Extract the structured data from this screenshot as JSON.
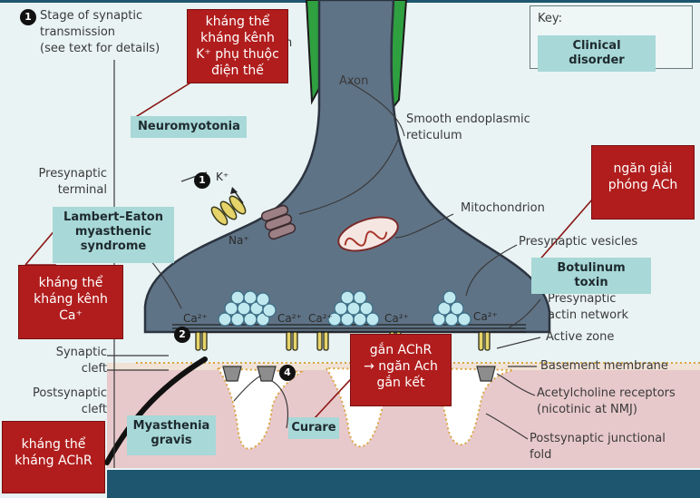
{
  "key": {
    "title": "Key:",
    "sample": "Clinical disorder"
  },
  "legend_note": {
    "number": "1",
    "text_line1": "Stage of synaptic",
    "text_line2": "transmission",
    "text_line3": "(see text for details)"
  },
  "step_numbers": {
    "k_step": "1",
    "ca_step": "2",
    "ach_step": "4"
  },
  "ions": {
    "k": "K⁺",
    "na": "Na⁺",
    "ca": "Ca²⁺"
  },
  "anatomy": {
    "axon": "Axon",
    "myelin_fragment": "n",
    "ser_line1": "Smooth endoplasmic",
    "ser_line2": "reticulum",
    "presynaptic_terminal_line1": "Presynaptic",
    "presynaptic_terminal_line2": "terminal",
    "mitochondrion": "Mitochondrion",
    "vesicles": "Presynaptic vesicles",
    "actin_line1": "Presynaptic",
    "actin_line2": "actin network",
    "active_zone": "Active zone",
    "synaptic_cleft_line1": "Synaptic",
    "synaptic_cleft_line2": "cleft",
    "basement_membrane": "Basement membrane",
    "postsynaptic_cleft_line1": "Postsynaptic",
    "postsynaptic_cleft_line2": "cleft",
    "achr_line1": "Acetylcholine receptors",
    "achr_line2": "(nicotinic at NMJ)",
    "fold_line1": "Postsynaptic junctional",
    "fold_line2": "fold"
  },
  "disorders": {
    "neuromyotonia": "Neuromyotonia",
    "lambert_line1": "Lambert–Eaton",
    "lambert_line2": "myasthenic",
    "lambert_line3": "syndrome",
    "botulinum": "Botulinum toxin",
    "curare": "Curare",
    "mg_line1": "Myasthenia",
    "mg_line2": "gravis"
  },
  "annotations": {
    "vgkc_line1": "kháng thể",
    "vgkc_line2": "kháng kênh",
    "vgkc_line3": "K⁺ phụ thuộc",
    "vgkc_line4": "điện thế",
    "ach_release_line1": "ngăn giải",
    "ach_release_line2": "phóng ACh",
    "vgcc_line1": "kháng thể",
    "vgcc_line2": "kháng kênh",
    "vgcc_line3": "Ca⁺",
    "curare_line1": "gắn AChR",
    "curare_line2": "→ ngăn Ach",
    "curare_line3": "gắn kết",
    "achr_ab_line1": "kháng thể",
    "achr_ab_line2": "kháng AChR"
  },
  "colors": {
    "terminal": "#5f7386",
    "myelin": "#2fa040",
    "clinical_box": "#a8d8d8",
    "annotation_box": "#b11d1d",
    "postsynaptic": "#e8c9cb",
    "vesicle": "#bfe9ef",
    "bottom_bar": "#1e5670"
  }
}
